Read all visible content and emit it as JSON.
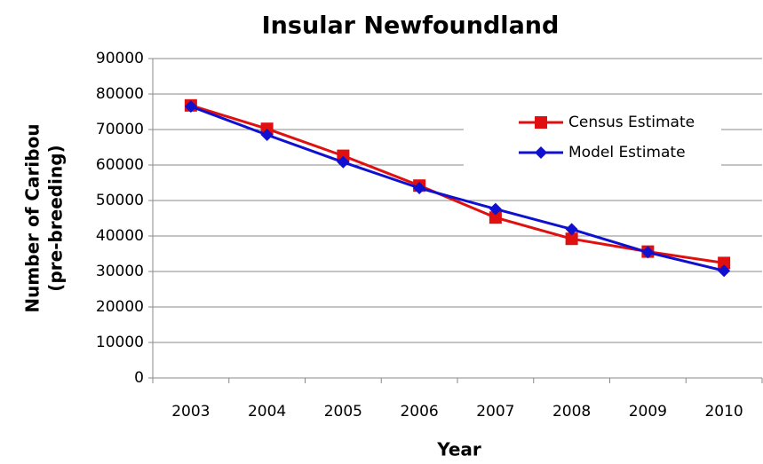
{
  "chart_data": {
    "type": "line",
    "title": "Insular Newfoundland",
    "xlabel": "Year",
    "ylabel": [
      "Number of Caribou",
      "(pre-breeding)"
    ],
    "categories": [
      "2003",
      "2004",
      "2005",
      "2006",
      "2007",
      "2008",
      "2009",
      "2010"
    ],
    "series": [
      {
        "name": "Census Estimate",
        "color": "#e01010",
        "marker": "square",
        "values": [
          76800,
          70200,
          62600,
          54200,
          45200,
          39200,
          35600,
          32400
        ]
      },
      {
        "name": "Model Estimate",
        "color": "#1010d0",
        "marker": "diamond",
        "values": [
          76500,
          68500,
          60800,
          53500,
          47600,
          41900,
          35400,
          30200
        ]
      }
    ],
    "ylim": [
      0,
      90000
    ],
    "yticks": [
      0,
      10000,
      20000,
      30000,
      40000,
      50000,
      60000,
      70000,
      80000,
      90000
    ],
    "grid": true,
    "legend": "upper-right"
  }
}
